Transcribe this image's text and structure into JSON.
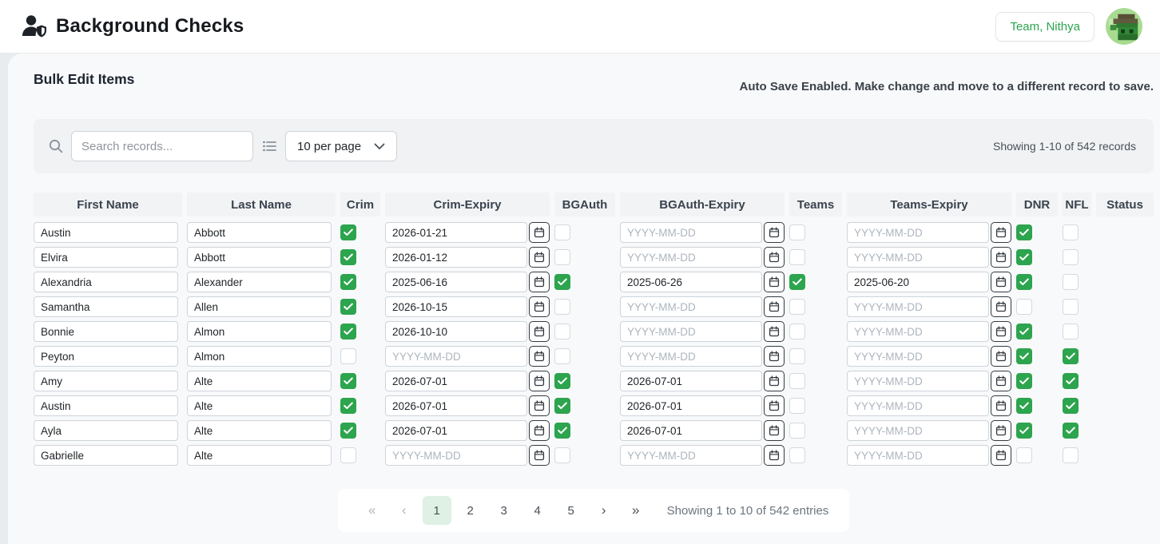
{
  "header": {
    "title": "Background Checks",
    "user_button_label": "Team, Nithya"
  },
  "page": {
    "title": "Bulk Edit Items",
    "autosave_note": "Auto Save Enabled. Make change and move to a different record to save."
  },
  "toolbar": {
    "search_placeholder": "Search records...",
    "per_page_selected": "10 per page",
    "records_count": "Showing 1-10 of 542 records"
  },
  "table": {
    "columns": [
      "First Name",
      "Last Name",
      "Crim",
      "Crim-Expiry",
      "BGAuth",
      "BGAuth-Expiry",
      "Teams",
      "Teams-Expiry",
      "DNR",
      "NFL",
      "Status"
    ],
    "date_placeholder": "YYYY-MM-DD",
    "rows": [
      {
        "first": "Austin",
        "last": "Abbott",
        "crim": true,
        "crim_expiry": "2026-01-21",
        "bgauth": false,
        "bgauth_expiry": "",
        "teams": false,
        "teams_expiry": "",
        "dnr": true,
        "nfl": false,
        "status": ""
      },
      {
        "first": "Elvira",
        "last": "Abbott",
        "crim": true,
        "crim_expiry": "2026-01-12",
        "bgauth": false,
        "bgauth_expiry": "",
        "teams": false,
        "teams_expiry": "",
        "dnr": true,
        "nfl": false,
        "status": ""
      },
      {
        "first": "Alexandria",
        "last": "Alexander",
        "crim": true,
        "crim_expiry": "2025-06-16",
        "bgauth": true,
        "bgauth_expiry": "2025-06-26",
        "teams": true,
        "teams_expiry": "2025-06-20",
        "dnr": true,
        "nfl": false,
        "status": ""
      },
      {
        "first": "Samantha",
        "last": "Allen",
        "crim": true,
        "crim_expiry": "2026-10-15",
        "bgauth": false,
        "bgauth_expiry": "",
        "teams": false,
        "teams_expiry": "",
        "dnr": false,
        "nfl": false,
        "status": ""
      },
      {
        "first": "Bonnie",
        "last": "Almon",
        "crim": true,
        "crim_expiry": "2026-10-10",
        "bgauth": false,
        "bgauth_expiry": "",
        "teams": false,
        "teams_expiry": "",
        "dnr": true,
        "nfl": false,
        "status": ""
      },
      {
        "first": "Peyton",
        "last": "Almon",
        "crim": false,
        "crim_expiry": "",
        "bgauth": false,
        "bgauth_expiry": "",
        "teams": false,
        "teams_expiry": "",
        "dnr": true,
        "nfl": true,
        "status": ""
      },
      {
        "first": "Amy",
        "last": "Alte",
        "crim": true,
        "crim_expiry": "2026-07-01",
        "bgauth": true,
        "bgauth_expiry": "2026-07-01",
        "teams": false,
        "teams_expiry": "",
        "dnr": true,
        "nfl": true,
        "status": ""
      },
      {
        "first": "Austin",
        "last": "Alte",
        "crim": true,
        "crim_expiry": "2026-07-01",
        "bgauth": true,
        "bgauth_expiry": "2026-07-01",
        "teams": false,
        "teams_expiry": "",
        "dnr": true,
        "nfl": true,
        "status": ""
      },
      {
        "first": "Ayla",
        "last": "Alte",
        "crim": true,
        "crim_expiry": "2026-07-01",
        "bgauth": true,
        "bgauth_expiry": "2026-07-01",
        "teams": false,
        "teams_expiry": "",
        "dnr": true,
        "nfl": true,
        "status": ""
      },
      {
        "first": "Gabrielle",
        "last": "Alte",
        "crim": false,
        "crim_expiry": "",
        "bgauth": false,
        "bgauth_expiry": "",
        "teams": false,
        "teams_expiry": "",
        "dnr": false,
        "nfl": false,
        "status": ""
      }
    ]
  },
  "pagination": {
    "first_label": "«",
    "prev_label": "‹",
    "pages": [
      "1",
      "2",
      "3",
      "4",
      "5"
    ],
    "active_page": "1",
    "next_label": "›",
    "last_label": "»",
    "summary": "Showing 1 to 10 of 542 entries"
  },
  "colors": {
    "accent_green": "#2da44e",
    "link_green": "#2ca048",
    "active_page_bg": "#def1e4",
    "toolbar_bg": "#f0f2f4",
    "card_bg": "#f8f9fa",
    "page_bg": "#e9ecef",
    "input_border": "#ced4da",
    "placeholder_gray": "#adb5bd"
  }
}
